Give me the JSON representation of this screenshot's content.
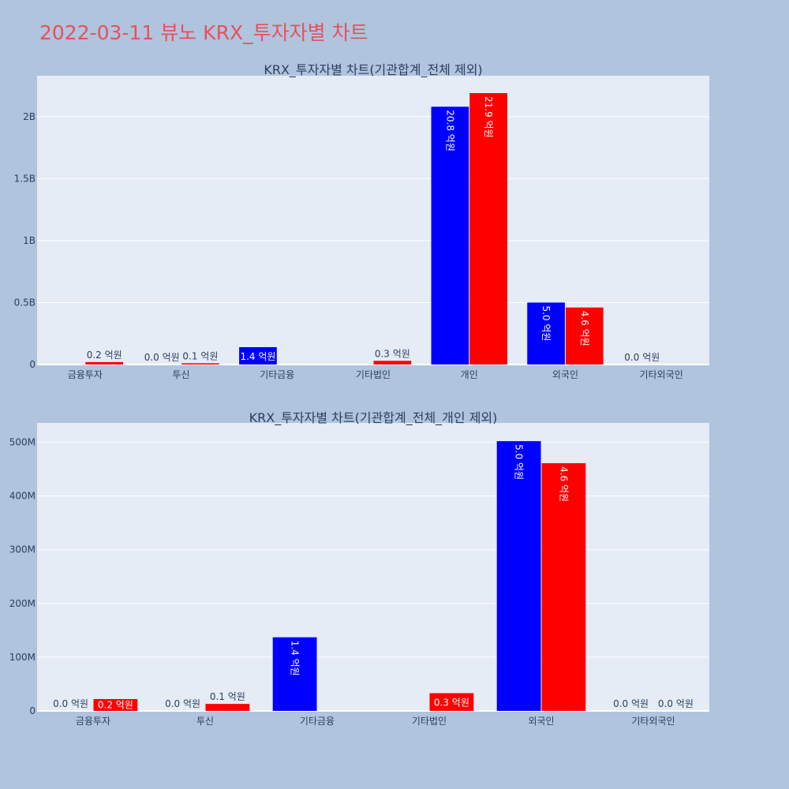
{
  "page": {
    "title": "2022-03-11 뷰노 KRX_투자자별 차트",
    "title_color": "#e8505b",
    "background": "#b0c4de",
    "plot_background": "#e5ecf6"
  },
  "chart_data": [
    {
      "type": "bar",
      "title": "KRX_투자자별 차트(기관합계_전체 제외)",
      "categories": [
        "금융투자",
        "투신",
        "기타금융",
        "기타법인",
        "개인",
        "외국인",
        "기타외국인"
      ],
      "y_tick_values": [
        0,
        500000000,
        1000000000,
        1500000000,
        2000000000
      ],
      "y_tick_labels": [
        "0",
        "0.5B",
        "1B",
        "1.5B",
        "2B"
      ],
      "ylim": [
        0,
        2330000000
      ],
      "grid": true,
      "series": [
        {
          "color": "#0000ff",
          "values": [
            null,
            0,
            140000000,
            null,
            2080000000,
            500000000,
            0
          ],
          "labels": [
            "",
            "0.0 억원",
            "1.4 억원",
            "",
            "20.8 억원",
            "5.0 억원",
            "0.0 억원"
          ]
        },
        {
          "color": "#ff0000",
          "values": [
            20000000,
            10000000,
            null,
            30000000,
            2190000000,
            460000000,
            null
          ],
          "labels": [
            "0.2 억원",
            "0.1 억원",
            "",
            "0.3 억원",
            "21.9 억원",
            "4.6 억원",
            ""
          ]
        }
      ]
    },
    {
      "type": "bar",
      "title": "KRX_투자자별 차트(기관합계_전체_개인 제외)",
      "categories": [
        "금융투자",
        "투신",
        "기타금융",
        "기타법인",
        "외국인",
        "기타외국인"
      ],
      "y_tick_values": [
        0,
        100000000,
        200000000,
        300000000,
        400000000,
        500000000
      ],
      "y_tick_labels": [
        "0",
        "100M",
        "200M",
        "300M",
        "400M",
        "500M"
      ],
      "ylim": [
        0,
        536000000
      ],
      "grid": true,
      "series": [
        {
          "color": "#0000ff",
          "values": [
            0,
            0,
            137000000,
            null,
            502000000,
            0
          ],
          "labels": [
            "0.0 억원",
            "0.0 억원",
            "1.4 억원",
            "",
            "5.0 억원",
            "0.0 억원"
          ]
        },
        {
          "color": "#ff0000",
          "values": [
            22000000,
            13000000,
            null,
            33000000,
            461000000,
            0
          ],
          "labels": [
            "0.2 억원",
            "0.1 억원",
            "",
            "0.3 억원",
            "4.6 억원",
            "0.0 억원"
          ]
        }
      ]
    }
  ]
}
